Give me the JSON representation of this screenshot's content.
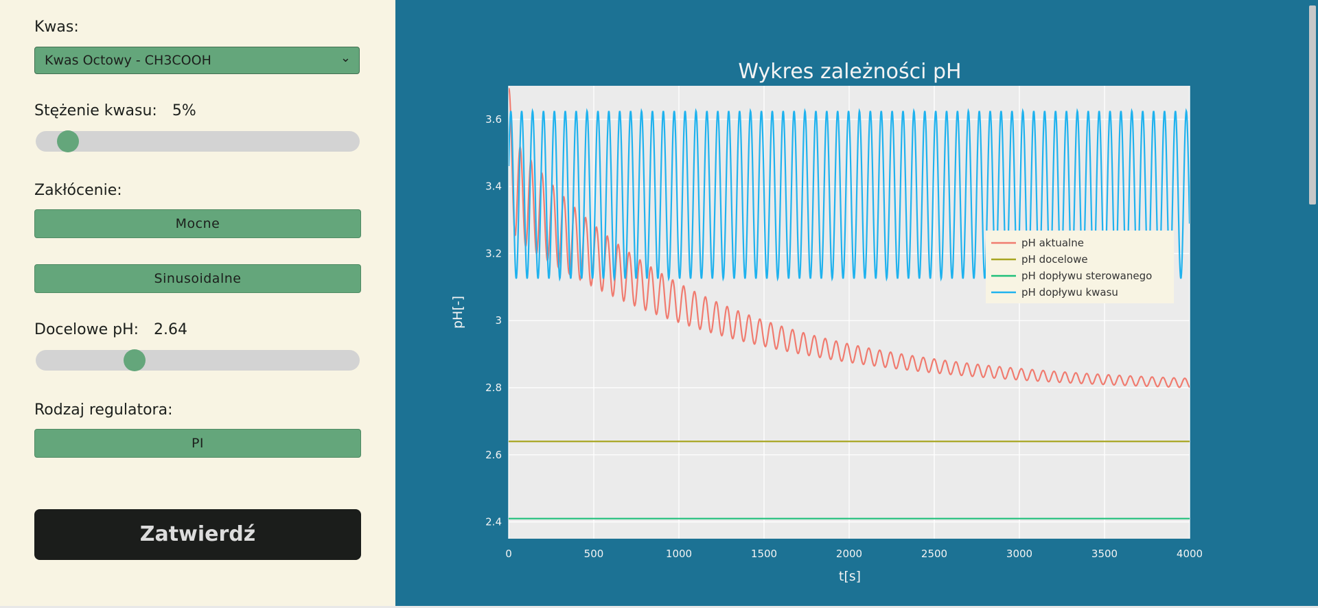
{
  "sidebar": {
    "acid_label": "Kwas:",
    "acid_selected": "Kwas Octowy - CH3COOH",
    "concentration_label": "Stężenie kwasu:",
    "concentration_value": "5%",
    "concentration_fraction": 0.07,
    "disturbance_label": "Zakłócenie:",
    "disturbance_strength_button": "Mocne",
    "disturbance_type_button": "Sinusoidalne",
    "target_ph_label": "Docelowe pH:",
    "target_ph_value": "2.64",
    "target_ph_fraction": 0.29,
    "regulator_label": "Rodzaj regulatora:",
    "regulator_button": "PI",
    "confirm_button": "Zatwierdź"
  },
  "colors": {
    "sidebar_bg": "#f8f4e3",
    "button_green": "#64a67b",
    "confirm_bg": "#1b1d1b",
    "plot_bg_outer": "#1c7294",
    "plot_bg_inner": "#ebebeb"
  },
  "chart_data": {
    "type": "line",
    "title": "Wykres zależności pH",
    "xlabel": "t[s]",
    "ylabel": "pH[-]",
    "xlim": [
      0,
      4000
    ],
    "ylim": [
      2.35,
      3.7
    ],
    "xticks": [
      0,
      500,
      1000,
      1500,
      2000,
      2500,
      3000,
      3500,
      4000
    ],
    "yticks": [
      2.4,
      2.6,
      2.8,
      3.0,
      3.2,
      3.4,
      3.6
    ],
    "ytick_labels": [
      "2.4",
      "2.6",
      "2.8",
      "3",
      "3.2",
      "3.4",
      "3.6"
    ],
    "grid": true,
    "legend_position": "right",
    "series": [
      {
        "name": "pH aktualne",
        "color": "#f07b6f",
        "model": {
          "start": 3.55,
          "base_end": 2.795,
          "tau": 1150,
          "amp_start": 0.14,
          "amp_tau": 900,
          "period": 64
        }
      },
      {
        "name": "pH docelowe",
        "color": "#a7a521",
        "values": [
          2.64,
          2.64
        ],
        "x": [
          0,
          4000
        ]
      },
      {
        "name": "pH dopływu sterowanego",
        "color": "#1fbf7a",
        "values": [
          2.41,
          2.41
        ],
        "x": [
          0,
          4000
        ]
      },
      {
        "name": "pH dopływu kwasu",
        "color": "#1fb2ee",
        "model": {
          "center": 3.375,
          "amplitude": 0.25,
          "period": 64
        }
      }
    ]
  }
}
